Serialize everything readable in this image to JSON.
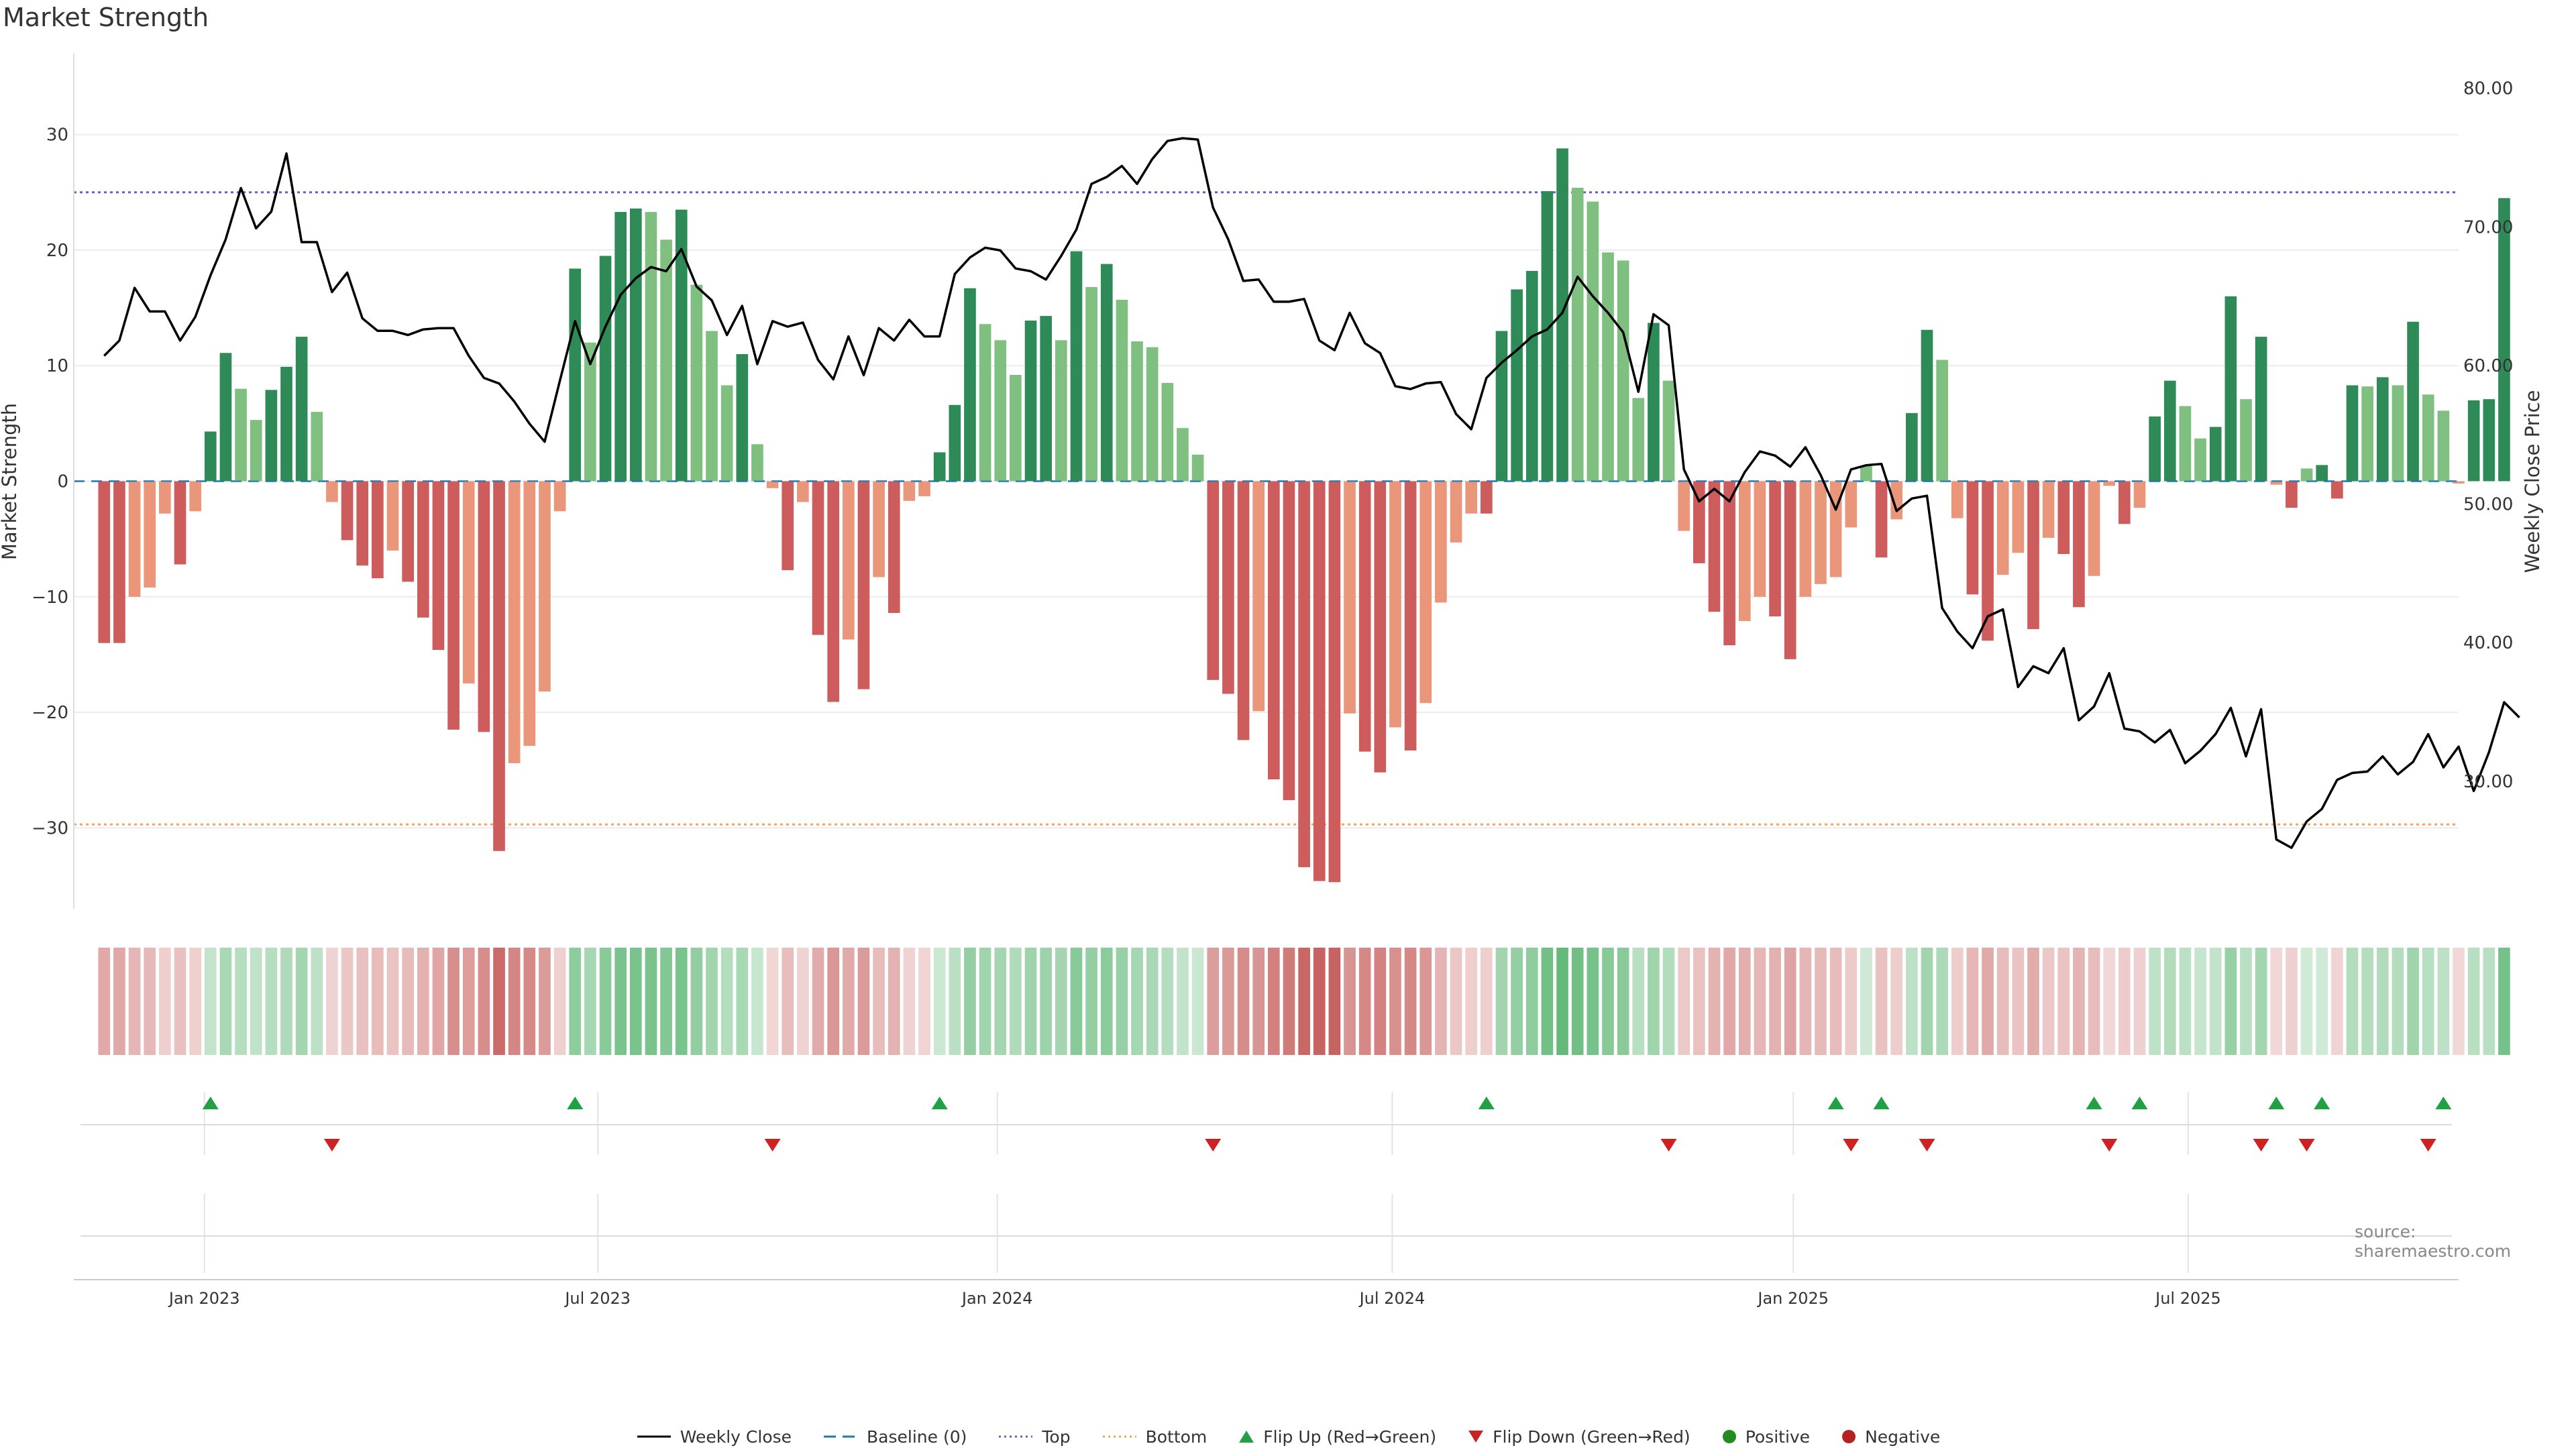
{
  "page": {
    "title": "Market Strength",
    "source": "source: sharemaestro.com"
  },
  "colors": {
    "strong_green": "#2e8b57",
    "light_green": "#7fbf7f",
    "strong_red": "#cd5c5c",
    "light_red": "#e9967a",
    "line": "#000000",
    "baseline": "#1f77b4",
    "top": "#6a5acd",
    "bottom": "#f4a460",
    "flip_up": "#22a045",
    "flip_down": "#cc2222",
    "positive": "#228b22",
    "negative": "#b22222"
  },
  "legend": [
    {
      "key": "weekly",
      "label": "Weekly Close"
    },
    {
      "key": "baseline",
      "label": "Baseline (0)"
    },
    {
      "key": "top",
      "label": "Top"
    },
    {
      "key": "bottom",
      "label": "Bottom"
    },
    {
      "key": "flipup",
      "label": "Flip Up (Red→Green)"
    },
    {
      "key": "flipdown",
      "label": "Flip Down (Green→Red)"
    },
    {
      "key": "positive",
      "label": "Positive"
    },
    {
      "key": "negative",
      "label": "Negative"
    }
  ],
  "chart_data": {
    "type": "bar",
    "title": "Market Strength",
    "ylabel": "Market Strength",
    "y2label": "Weekly Close Price",
    "ylim": [
      -37,
      37
    ],
    "y2lim": [
      20.8,
      82.5
    ],
    "yticks": [
      "−30",
      "−20",
      "−10",
      "0",
      "10",
      "20",
      "30"
    ],
    "ytick_values": [
      -30,
      -20,
      -10,
      0,
      10,
      20,
      30
    ],
    "y2ticks": [
      "30.00",
      "40.00",
      "50.00",
      "60.00",
      "70.00",
      "80.00"
    ],
    "y2tick_values": [
      30,
      40,
      50,
      60,
      70,
      80
    ],
    "xlim_weeks": [
      -2,
      155
    ],
    "xticks": [
      {
        "label": "Jan 2023",
        "week": 6.6
      },
      {
        "label": "Jul 2023",
        "week": 32.5
      },
      {
        "label": "Jan 2024",
        "week": 58.8
      },
      {
        "label": "Jul 2024",
        "week": 84.8
      },
      {
        "label": "Jan 2025",
        "week": 111.2
      },
      {
        "label": "Jul 2025",
        "week": 137.2
      }
    ],
    "top_level": 25,
    "bottom_level": -29.7,
    "baseline": 0,
    "strength": [
      -14,
      -14,
      -10,
      -9.2,
      -2.8,
      -7.2,
      -2.6,
      4.3,
      11.1,
      8,
      5.3,
      7.9,
      9.9,
      12.5,
      6,
      -1.8,
      -5.1,
      -7.3,
      -8.4,
      -6,
      -8.7,
      -11.8,
      -14.6,
      -21.5,
      -17.5,
      -21.7,
      -32,
      -24.4,
      -22.9,
      -18.2,
      -2.6,
      18.4,
      12,
      19.5,
      23.3,
      23.6,
      23.3,
      20.9,
      23.5,
      17,
      13,
      8.3,
      11,
      3.2,
      -0.6,
      -7.7,
      -1.8,
      -13.3,
      -19.1,
      -13.7,
      -18,
      -8.3,
      -11.4,
      -1.7,
      -1.3,
      2.5,
      6.6,
      16.7,
      13.6,
      12.2,
      9.2,
      13.9,
      14.3,
      12.2,
      19.9,
      16.8,
      18.8,
      15.7,
      12.1,
      11.6,
      8.5,
      4.6,
      2.3,
      -17.2,
      -18.4,
      -22.4,
      -19.9,
      -25.8,
      -27.6,
      -33.4,
      -34.6,
      -34.7,
      -20.1,
      -23.4,
      -25.2,
      -21.3,
      -23.3,
      -19.2,
      -10.5,
      -5.3,
      -2.8,
      -2.8,
      13,
      16.6,
      18.2,
      25.1,
      28.8,
      25.4,
      24.2,
      19.8,
      19.1,
      7.2,
      13.7,
      8.7,
      -4.3,
      -7.1,
      -11.3,
      -14.2,
      -12.1,
      -10,
      -11.7,
      -15.4,
      -10,
      -8.9,
      -8.3,
      -4,
      1.3,
      -6.6,
      -3.3,
      5.9,
      13.1,
      10.5,
      -3.2,
      -9.8,
      -13.8,
      -8.1,
      -6.2,
      -12.8,
      -4.9,
      -6.3,
      -10.9,
      -8.2,
      -0.4,
      -3.7,
      -2.3,
      5.6,
      8.7,
      6.5,
      3.7,
      4.7,
      16,
      7.1,
      12.5,
      -0.3,
      -2.3,
      1.1,
      1.4,
      -1.5,
      8.3,
      8.2,
      9,
      8.3,
      13.8,
      7.5,
      6.1,
      -0.2,
      7,
      7.1,
      24.5
    ],
    "weekly_close": [
      60.7,
      61.8,
      65.6,
      63.9,
      63.9,
      61.8,
      63.5,
      66.5,
      69.1,
      72.8,
      69.9,
      71.1,
      75.3,
      68.9,
      68.9,
      65.3,
      66.7,
      63.4,
      62.5,
      62.5,
      62.2,
      62.6,
      62.7,
      62.7,
      60.7,
      59.1,
      58.7,
      57.4,
      55.8,
      54.5,
      58.9,
      63.2,
      60.1,
      62.8,
      65.1,
      66.3,
      67.1,
      66.8,
      68.4,
      65.7,
      64.7,
      62.2,
      64.3,
      60.1,
      63.2,
      62.8,
      63.1,
      60.4,
      59,
      62.1,
      59.3,
      62.7,
      61.8,
      63.3,
      62.1,
      62.1,
      66.6,
      67.8,
      68.5,
      68.3,
      67,
      66.8,
      66.2,
      67.9,
      69.8,
      73.1,
      73.6,
      74.4,
      73.1,
      74.9,
      76.2,
      76.4,
      76.3,
      71.4,
      69.1,
      66.1,
      66.2,
      64.6,
      64.6,
      64.8,
      61.8,
      61.1,
      63.8,
      61.6,
      60.9,
      58.5,
      58.3,
      58.7,
      58.8,
      56.5,
      55.4,
      59.1,
      60.2,
      61.1,
      62.1,
      62.6,
      63.8,
      66.4,
      65,
      63.8,
      62.4,
      58.1,
      63.7,
      62.9,
      52.5,
      50.2,
      51.1,
      50.2,
      52.3,
      53.8,
      53.5,
      52.7,
      54.1,
      52.1,
      49.6,
      52.5,
      52.8,
      52.9,
      49.5,
      50.4,
      50.6,
      42.5,
      40.8,
      39.6,
      41.9,
      42.4,
      36.8,
      38.3,
      37.8,
      39.6,
      34.4,
      35.4,
      37.8,
      33.8,
      33.6,
      32.8,
      33.7,
      31.3,
      32.2,
      33.4,
      35.3,
      31.8,
      35.2,
      25.8,
      25.2,
      27.1,
      28,
      30.1,
      30.6,
      30.7,
      31.8,
      30.5,
      31.4,
      33.4,
      31,
      32.5,
      29.3,
      32.1,
      35.7,
      34.6
    ],
    "flip_up_weeks": [
      7,
      31,
      55,
      91,
      114,
      117,
      131,
      134,
      143,
      146,
      154
    ],
    "flip_down_weeks": [
      15,
      44,
      73,
      103,
      115,
      120,
      132,
      142,
      145,
      153
    ]
  }
}
